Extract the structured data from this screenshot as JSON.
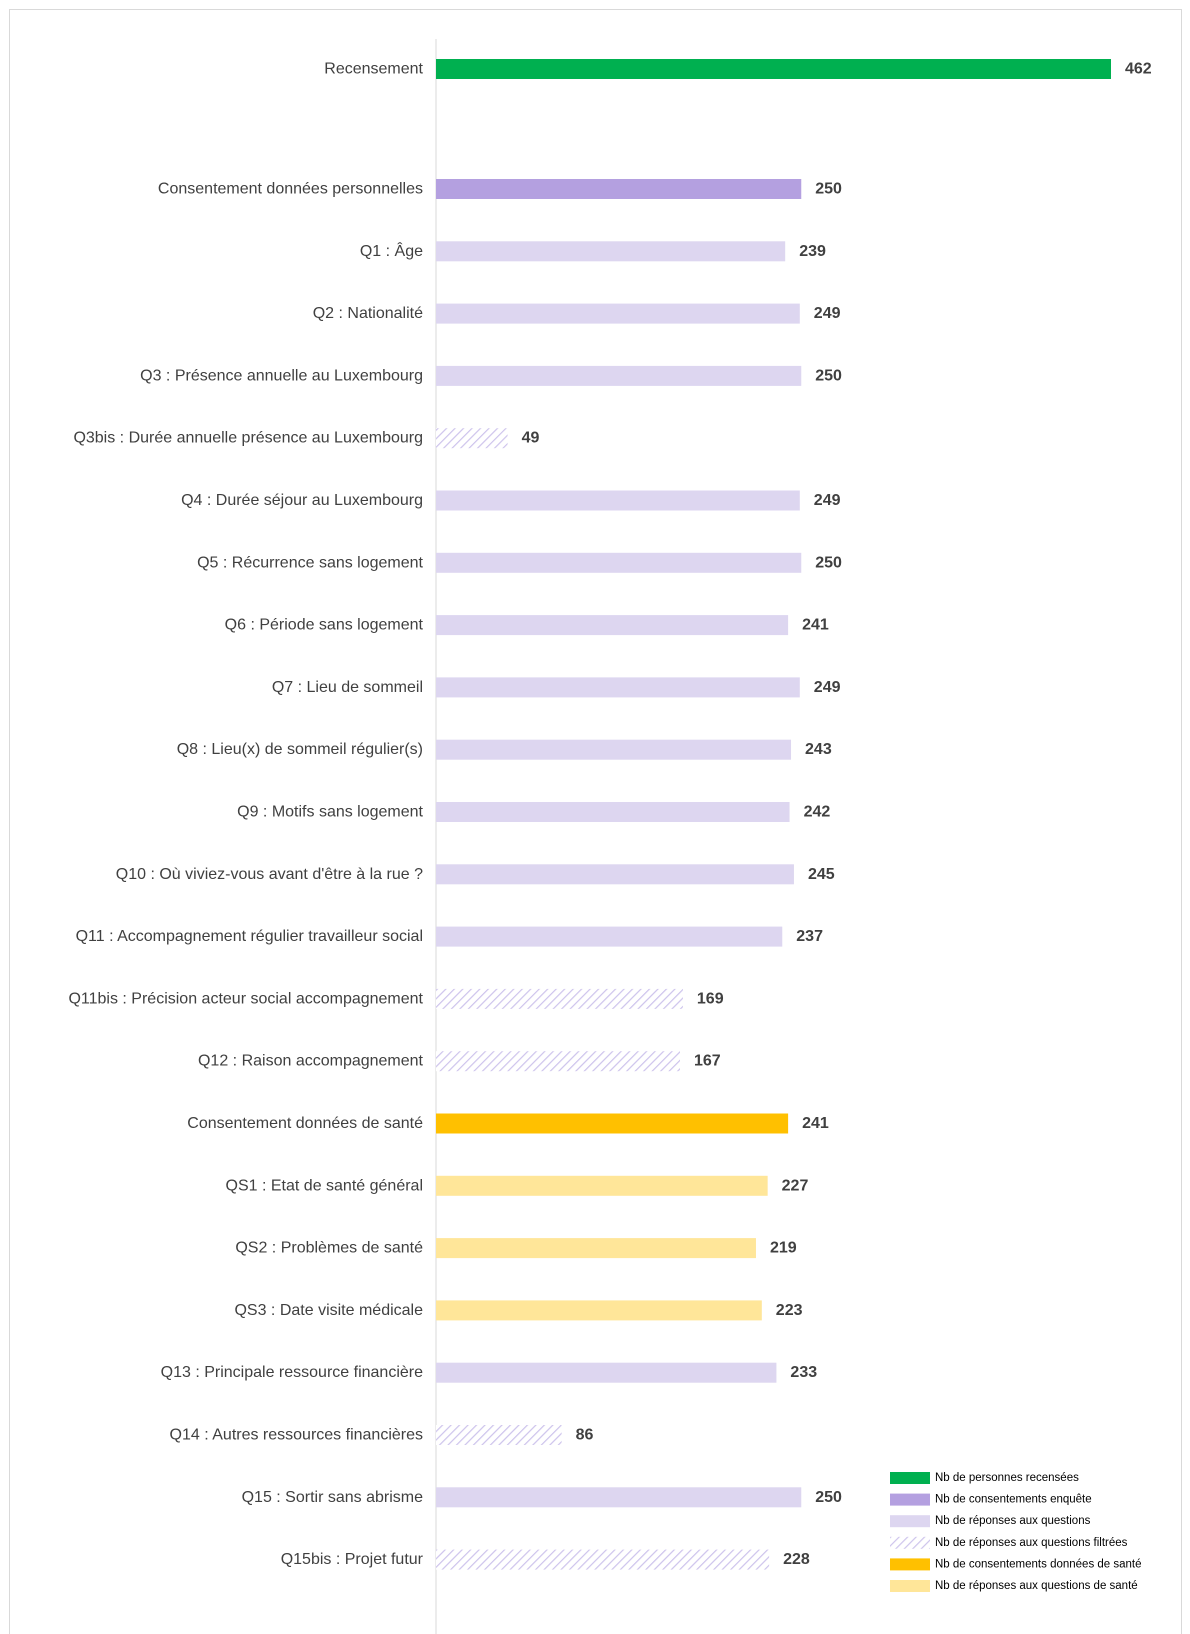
{
  "colors": {
    "census": "#00b050",
    "consent_survey": "#b4a0e0",
    "answers": "#ddd6f0",
    "filtered": "#cdc3ec",
    "consent_health": "#ffc000",
    "health_answers": "#ffe699"
  },
  "chart_data": {
    "type": "bar",
    "orientation": "horizontal",
    "title": "",
    "xlabel": "",
    "ylabel": "",
    "xlim": [
      0,
      462
    ],
    "categories": [
      "Recensement",
      "Consentement données personnelles",
      "Q1 : Âge",
      "Q2 : Nationalité",
      "Q3 : Présence annuelle au Luxembourg",
      "Q3bis : Durée annuelle présence au Luxembourg",
      "Q4 : Durée séjour au Luxembourg",
      "Q5 : Récurrence sans logement",
      "Q6 : Période sans logement",
      "Q7 : Lieu de sommeil",
      "Q8 : Lieu(x) de sommeil régulier(s)",
      "Q9 : Motifs sans logement",
      "Q10 : Où viviez-vous avant d'être à la rue ?",
      "Q11 : Accompagnement régulier travailleur social",
      "Q11bis : Précision acteur social accompagnement",
      "Q12 : Raison accompagnement",
      "Consentement données de santé",
      "QS1 : Etat de santé général",
      "QS2 : Problèmes de santé",
      "QS3 : Date visite médicale",
      "Q13 : Principale ressource financière",
      "Q14 : Autres ressources financières",
      "Q15 : Sortir sans abrisme",
      "Q15bis : Projet futur"
    ],
    "values": [
      462,
      250,
      239,
      249,
      250,
      49,
      249,
      250,
      241,
      249,
      243,
      242,
      245,
      237,
      169,
      167,
      241,
      227,
      219,
      223,
      233,
      86,
      250,
      228
    ],
    "series_types": [
      "census",
      "consent_survey",
      "answers",
      "answers",
      "answers",
      "filtered",
      "answers",
      "answers",
      "answers",
      "answers",
      "answers",
      "answers",
      "answers",
      "answers",
      "filtered",
      "filtered",
      "consent_health",
      "health_answers",
      "health_answers",
      "health_answers",
      "answers",
      "filtered",
      "answers",
      "filtered"
    ],
    "data_labels": [
      "462",
      "250",
      "239",
      "249",
      "250",
      "49",
      "249",
      "250",
      "241",
      "249",
      "243",
      "242",
      "245",
      "237",
      "169",
      "167",
      "241",
      "227",
      "219",
      "223",
      "233",
      "86",
      "250",
      "228"
    ],
    "legend_position": "bottom-right",
    "legend": [
      {
        "type": "census",
        "label": "Nb de personnes recensées"
      },
      {
        "type": "consent_survey",
        "label": "Nb de consentements enquête"
      },
      {
        "type": "answers",
        "label": "Nb de réponses aux questions"
      },
      {
        "type": "filtered",
        "label": "Nb de réponses aux questions filtrées"
      },
      {
        "type": "consent_health",
        "label": "Nb de consentements données de santé"
      },
      {
        "type": "health_answers",
        "label": "Nb de réponses aux questions de santé"
      }
    ]
  }
}
